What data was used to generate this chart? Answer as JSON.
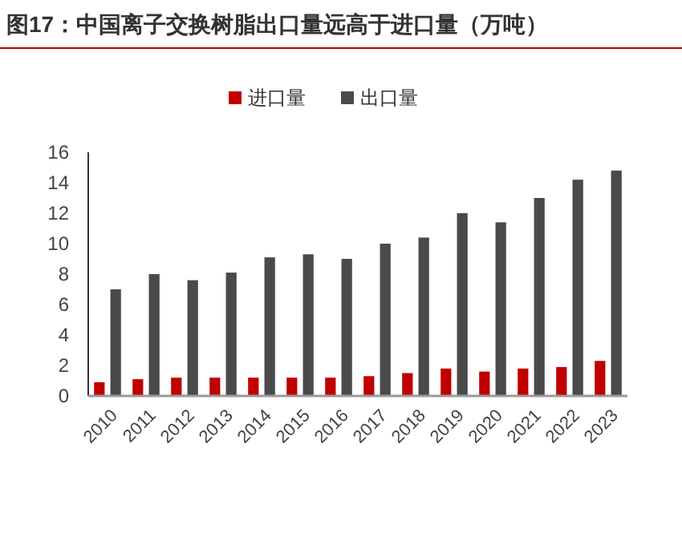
{
  "chart_data": {
    "type": "bar",
    "title": "图17：中国离子交换树脂出口量远高于进口量（万吨）",
    "categories": [
      "2010",
      "2011",
      "2012",
      "2013",
      "2014",
      "2015",
      "2016",
      "2017",
      "2018",
      "2019",
      "2020",
      "2021",
      "2022",
      "2023"
    ],
    "series": [
      {
        "name": "进口量",
        "color": "#c00000",
        "values": [
          0.9,
          1.1,
          1.2,
          1.2,
          1.2,
          1.2,
          1.2,
          1.3,
          1.5,
          1.8,
          1.6,
          1.8,
          1.9,
          2.3
        ]
      },
      {
        "name": "出口量",
        "color": "#4a4a4a",
        "values": [
          7.0,
          8.0,
          7.6,
          8.1,
          9.1,
          9.3,
          9.0,
          10.0,
          10.4,
          12.0,
          11.4,
          13.0,
          14.2,
          14.8
        ]
      }
    ],
    "ylim": [
      0,
      16
    ],
    "yticks": [
      0,
      2,
      4,
      6,
      8,
      10,
      12,
      14,
      16
    ],
    "grid": false,
    "legend": "top"
  }
}
